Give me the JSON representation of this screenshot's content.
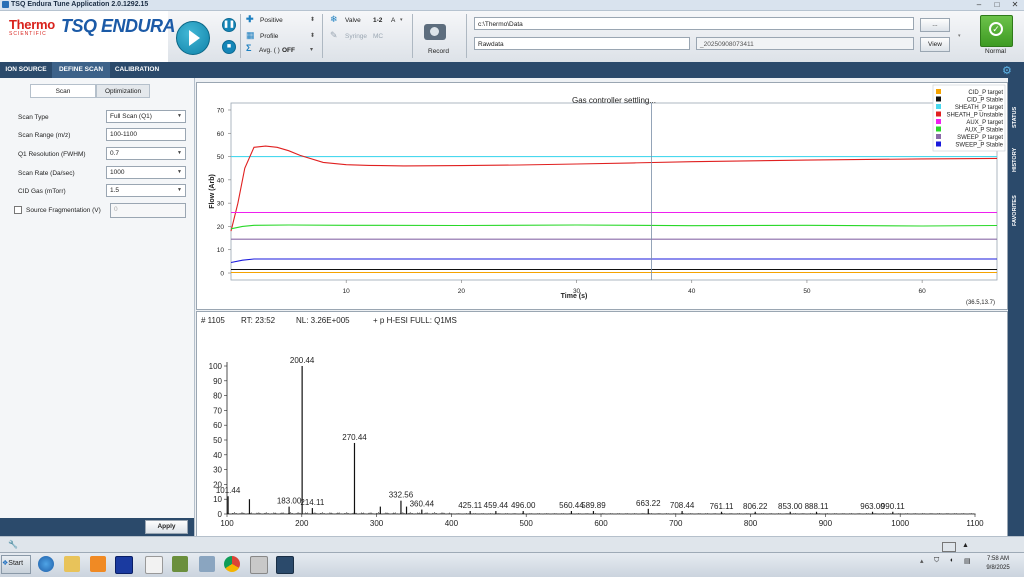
{
  "window": {
    "title": "TSQ Endura Tune Application 2.0.1292.15"
  },
  "brand": {
    "thermo": "Thermo",
    "scientific": "SCIENTIFIC",
    "product": "TSQ ENDURA"
  },
  "toolbar": {
    "polarity_label": "Positive",
    "profile_label": "Profile",
    "avg_label": "Avg. ( )",
    "avg_value": "OFF",
    "valve_label": "Valve",
    "valve_value": "1-2",
    "valve_pos": "A",
    "tee_label": "Syringe",
    "tee_value": "MC",
    "record_label": "Record",
    "path_value": "c:\\Thermo\\Data",
    "filename_value": "Rawdata",
    "suffix_value": "_20250908073411",
    "browse_label": "...",
    "view_label": "View",
    "status_label": "Normal"
  },
  "tabs": [
    "ION SOURCE",
    "DEFINE SCAN",
    "CALIBRATION"
  ],
  "subtabs": [
    "Scan",
    "Optimization"
  ],
  "scan_params": [
    {
      "label": "Scan Type",
      "value": "Full Scan (Q1)",
      "combo": true
    },
    {
      "label": "Scan Range (m/z)",
      "value": "100-1100",
      "combo": false
    },
    {
      "label": "Q1 Resolution (FWHM)",
      "value": "0.7",
      "combo": true
    },
    {
      "label": "Scan Rate (Da/sec)",
      "value": "1000",
      "combo": true
    },
    {
      "label": "CID Gas (mTorr)",
      "value": "1.5",
      "combo": true
    }
  ],
  "source_frag": {
    "label": "Source Fragmentation (V)",
    "value": "0"
  },
  "apply_label": "Apply",
  "right_tabs": [
    "STATUS",
    "HISTORY",
    "FAVORITES"
  ],
  "colors": {
    "accent": "#2b4a6b",
    "status_green": "#4caf2f"
  },
  "flow_chart": {
    "title": "Gas controller settling...",
    "xlabel": "Time (s)",
    "ylabel": "Flow (Arb)",
    "coord_readout": "(36.5,13.7)",
    "xticks": [
      10,
      20,
      30,
      40,
      50,
      60
    ],
    "yticks": [
      0,
      10,
      20,
      30,
      40,
      50,
      60,
      70
    ],
    "xlim": [
      0,
      66.5
    ],
    "ylim": [
      -3,
      73
    ],
    "cursor_x": 36.5,
    "legend": [
      {
        "name": "CID_P target",
        "color": "#f5a300"
      },
      {
        "name": "CID_P Stable",
        "color": "#111111"
      },
      {
        "name": "SHEATH_P target",
        "color": "#49d8ee"
      },
      {
        "name": "SHEATH_P Unstable",
        "color": "#e02020"
      },
      {
        "name": "AUX_P target",
        "color": "#ee20ee"
      },
      {
        "name": "AUX_P Stable",
        "color": "#28d828"
      },
      {
        "name": "SWEEP_P target",
        "color": "#8a6aa8"
      },
      {
        "name": "SWEEP_P Stable",
        "color": "#1a1adc"
      }
    ],
    "series": [
      {
        "name": "CID_P target",
        "color": "#f5a300",
        "x": [
          0,
          66.5
        ],
        "y": [
          0.2,
          0.2
        ]
      },
      {
        "name": "CID_P Stable",
        "color": "#111111",
        "x": [
          0,
          66.5
        ],
        "y": [
          1.5,
          1.5
        ]
      },
      {
        "name": "SHEATH_P target",
        "color": "#49d8ee",
        "x": [
          0,
          66.5
        ],
        "y": [
          50,
          50
        ]
      },
      {
        "name": "SHEATH_P Unstable",
        "color": "#e02020",
        "x": [
          0,
          0.6,
          1.2,
          2,
          3,
          4,
          5,
          6,
          8,
          10,
          12,
          15,
          20,
          25,
          30,
          35,
          40,
          50,
          60,
          66.5
        ],
        "y": [
          18,
          30,
          45,
          54,
          54.5,
          54,
          52.5,
          50.5,
          47.5,
          46.5,
          46.2,
          46,
          46.1,
          46.4,
          46.8,
          47.3,
          47.8,
          48.5,
          49,
          49.2
        ]
      },
      {
        "name": "AUX_P target",
        "color": "#ee20ee",
        "x": [
          0,
          66.5
        ],
        "y": [
          26,
          26
        ]
      },
      {
        "name": "AUX_P Stable",
        "color": "#28d828",
        "x": [
          0,
          1,
          2,
          5,
          10,
          20,
          30,
          40,
          50,
          60,
          66.5
        ],
        "y": [
          19,
          20,
          20.5,
          20.6,
          20.5,
          20.4,
          20.6,
          20.3,
          20.5,
          20.2,
          20.4
        ]
      },
      {
        "name": "SWEEP_P target",
        "color": "#8a6aa8",
        "x": [
          0,
          66.5
        ],
        "y": [
          14.5,
          14.5
        ]
      },
      {
        "name": "SWEEP_P Stable",
        "color": "#1a1adc",
        "x": [
          0,
          1,
          2,
          66.5
        ],
        "y": [
          4.5,
          5.5,
          6,
          6
        ]
      }
    ]
  },
  "spectrum": {
    "header": {
      "scan": "# 1105",
      "rt": "RT: 23:52",
      "nl": "NL: 3.26E+005",
      "filter": "+ p H-ESI FULL: Q1MS"
    },
    "xticks": [
      100,
      200,
      300,
      400,
      500,
      600,
      700,
      800,
      900,
      1000,
      1100
    ],
    "yticks": [
      0,
      10,
      20,
      30,
      40,
      50,
      60,
      70,
      80,
      90,
      100
    ],
    "xlim": [
      100,
      1100
    ],
    "ylim": [
      0,
      100
    ],
    "peaks": [
      {
        "mz": 101.44,
        "i": 12,
        "label": "101.44"
      },
      {
        "mz": 130.0,
        "i": 10,
        "label": ""
      },
      {
        "mz": 183.0,
        "i": 5,
        "label": "183.00"
      },
      {
        "mz": 200.44,
        "i": 100,
        "label": "200.44"
      },
      {
        "mz": 214.11,
        "i": 4,
        "label": "214.11"
      },
      {
        "mz": 270.44,
        "i": 48,
        "label": "270.44"
      },
      {
        "mz": 305.0,
        "i": 5,
        "label": ""
      },
      {
        "mz": 332.56,
        "i": 9,
        "label": "332.56"
      },
      {
        "mz": 340.0,
        "i": 5,
        "label": ""
      },
      {
        "mz": 360.44,
        "i": 3,
        "label": "360.44"
      },
      {
        "mz": 425.11,
        "i": 2,
        "label": "425.11"
      },
      {
        "mz": 459.44,
        "i": 2,
        "label": "459.44"
      },
      {
        "mz": 496.0,
        "i": 2,
        "label": "496.00"
      },
      {
        "mz": 560.44,
        "i": 2,
        "label": "560.44"
      },
      {
        "mz": 589.89,
        "i": 2,
        "label": "589.89"
      },
      {
        "mz": 663.22,
        "i": 3.5,
        "label": "663.22"
      },
      {
        "mz": 708.44,
        "i": 2,
        "label": "708.44"
      },
      {
        "mz": 761.11,
        "i": 1.5,
        "label": "761.11"
      },
      {
        "mz": 806.22,
        "i": 1.5,
        "label": "806.22"
      },
      {
        "mz": 853.0,
        "i": 1.5,
        "label": "853.00"
      },
      {
        "mz": 888.11,
        "i": 1.5,
        "label": "888.11"
      },
      {
        "mz": 963.0,
        "i": 1.5,
        "label": "963.00"
      },
      {
        "mz": 990.11,
        "i": 1.5,
        "label": "990.11"
      }
    ]
  },
  "taskbar": {
    "start_label": "Start",
    "time": "7:58 AM",
    "date": "9/8/2025"
  }
}
